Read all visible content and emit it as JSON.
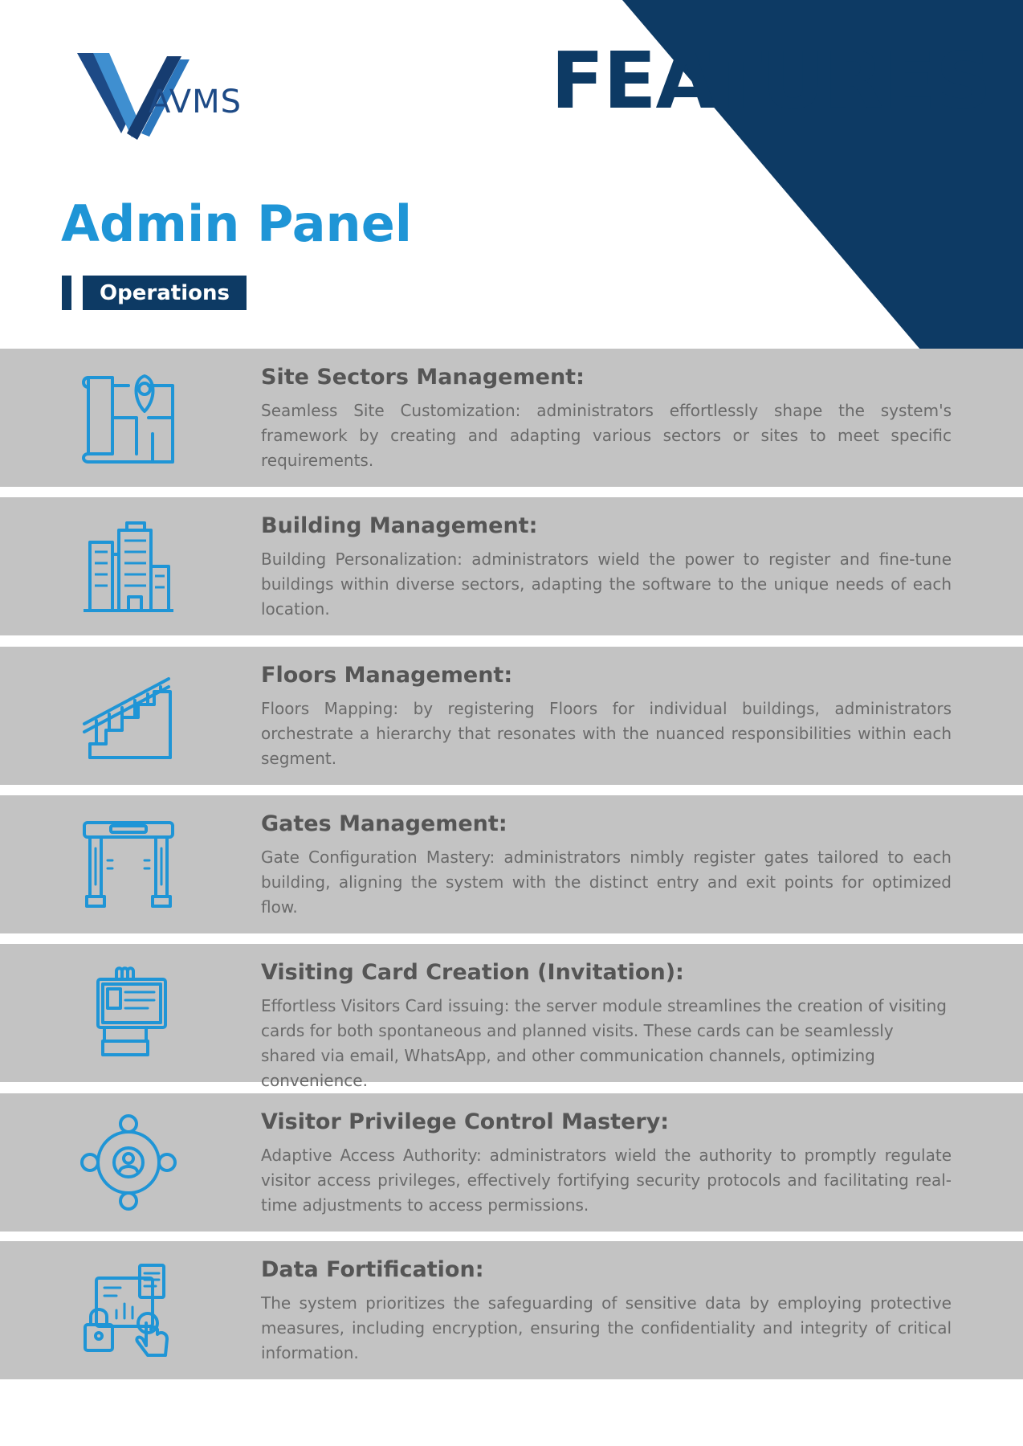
{
  "brand": {
    "logo_text": "AVMS",
    "colors": {
      "navy": "#0d3a64",
      "blue": "#1f95d6",
      "row_gray": "#c3c3c3"
    }
  },
  "header": {
    "features_label": "FEATURES",
    "section_title": "Admin Panel",
    "section_badge": "Operations"
  },
  "features": [
    {
      "icon": "site-map-icon",
      "title": "Site Sectors Management:",
      "description": "Seamless Site Customization: administrators effortlessly shape the system's framework by creating and adapting various sectors or sites to meet specific requirements."
    },
    {
      "icon": "building-icon",
      "title": "Building Management:",
      "description": "Building Personalization: administrators wield the power to register and fine-tune buildings within diverse sectors, adapting the software to the unique needs of each location."
    },
    {
      "icon": "stairs-icon",
      "title": "Floors Management:",
      "description": "Floors Mapping: by registering Floors for individual buildings, administrators orchestrate a hierarchy that resonates with the nuanced responsibilities within each segment."
    },
    {
      "icon": "security-gate-icon",
      "title": "Gates Management:",
      "description": "Gate Configuration Mastery: administrators nimbly register gates tailored to each building, aligning the system with the distinct entry and exit points for optimized flow."
    },
    {
      "icon": "visiting-card-icon",
      "title": "Visiting Card Creation (Invitation):",
      "description": "Effortless Visitors Card issuing: the server module streamlines the creation of visiting cards for both spontaneous and planned visits. These cards can be seamlessly shared via email, WhatsApp, and other communication channels, optimizing convenience."
    },
    {
      "icon": "user-network-icon",
      "title": "Visitor Privilege Control Mastery:",
      "description": "Adaptive Access Authority: administrators wield the authority to promptly regulate visitor access privileges, effectively fortifying security protocols and facilitating real-time adjustments to access permissions."
    },
    {
      "icon": "data-lock-icon",
      "title": "Data Fortification:",
      "description": "The system prioritizes the safeguarding of sensitive data by employing protective measures, including encryption, ensuring the confidentiality and integrity of critical information."
    }
  ]
}
